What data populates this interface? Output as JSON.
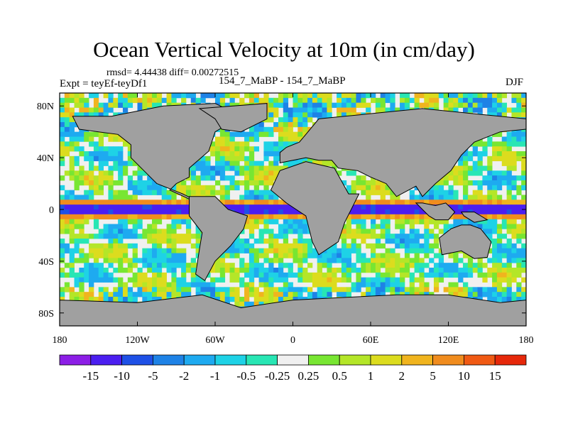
{
  "chart_data": {
    "type": "heatmap",
    "title": "Ocean Vertical Velocity at 10m (in cm/day)",
    "stats_text": "rmsd= 4.44438 diff= 0.00272515",
    "experiment_label": "Expt = teyEf-teyDf1",
    "runs_label": "154_7_MaBP - 154_7_MaBP",
    "season": "DJF",
    "units": "cm/day",
    "x_axis": {
      "range": [
        -180,
        180
      ],
      "ticks": [
        -180,
        -120,
        -60,
        0,
        60,
        120,
        180
      ],
      "tick_labels": [
        "180",
        "120W",
        "60W",
        "0",
        "60E",
        "120E",
        "180"
      ]
    },
    "y_axis": {
      "range": [
        -90,
        90
      ],
      "ticks": [
        80,
        40,
        0,
        -40,
        -80
      ],
      "tick_labels": [
        "80N",
        "40N",
        "0",
        "40S",
        "80S"
      ]
    },
    "colorbar": {
      "levels": [
        -15,
        -10,
        -5,
        -2,
        -1,
        -0.5,
        -0.25,
        0.25,
        0.5,
        1,
        2,
        5,
        10,
        15
      ],
      "level_labels": [
        "-15",
        "-10",
        "-5",
        "-2",
        "-1",
        "-0.5",
        "-0.25",
        "0.25",
        "0.5",
        "1",
        "2",
        "5",
        "10",
        "15"
      ],
      "colors": [
        "#8c1ee6",
        "#4b1ef0",
        "#1e50e6",
        "#1e82e6",
        "#1eaaf0",
        "#1ed2e6",
        "#28e6b4",
        "#f0f0f0",
        "#78e632",
        "#b4e628",
        "#dcdc1e",
        "#f0b41e",
        "#f08c1e",
        "#f05a14",
        "#e6280a"
      ]
    },
    "land_color": "#a0a0a0"
  }
}
